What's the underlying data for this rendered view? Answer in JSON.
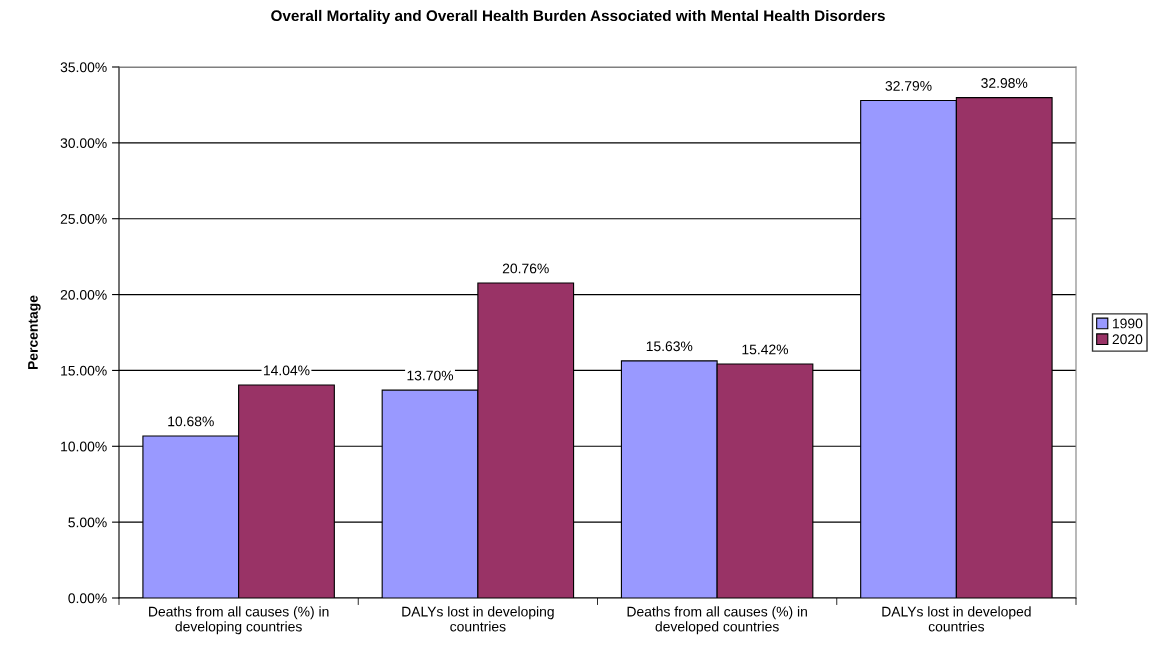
{
  "chart_data": {
    "type": "bar",
    "title": "Overall Mortality and Overall Health Burden Associated with Mental Health Disorders",
    "ylabel": "Percentage",
    "categories": [
      "Deaths from all causes (%) in\ndeveloping countries",
      "DALYs lost in developing\ncountries",
      "Deaths from all causes (%) in\ndeveloped countries",
      "DALYs lost in developed\ncountries"
    ],
    "series": [
      {
        "name": "1990",
        "color": "#9999ff",
        "values": [
          10.68,
          13.7,
          15.63,
          32.79
        ],
        "value_labels": [
          "10.68%",
          "13.70%",
          "15.63%",
          "32.79%"
        ]
      },
      {
        "name": "2020",
        "color": "#993366",
        "values": [
          14.04,
          20.76,
          15.42,
          32.98
        ],
        "value_labels": [
          "14.04%",
          "20.76%",
          "15.42%",
          "32.98%"
        ]
      }
    ],
    "ylim": [
      0,
      35
    ],
    "yticks": [
      {
        "value": 0,
        "label": "0.00%"
      },
      {
        "value": 5,
        "label": "5.00%"
      },
      {
        "value": 10,
        "label": "10.00%"
      },
      {
        "value": 15,
        "label": "15.00%"
      },
      {
        "value": 20,
        "label": "20.00%"
      },
      {
        "value": 25,
        "label": "25.00%"
      },
      {
        "value": 30,
        "label": "30.00%"
      },
      {
        "value": 35,
        "label": "35.00%"
      }
    ],
    "grid": "y",
    "legend": "right"
  }
}
